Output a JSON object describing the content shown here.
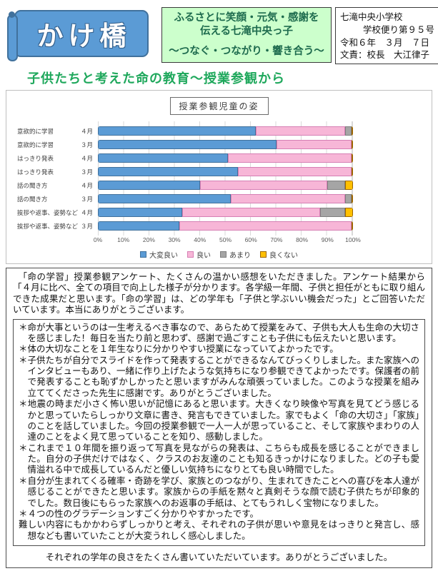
{
  "masthead": {
    "banner_title": "かけ橋",
    "motto": {
      "line1": "ふるさとに笑顔・元気・感謝を",
      "line2": "伝える七滝中央っ子",
      "tagline": "〜つなぐ・つながり・響き合う〜"
    },
    "school_info": {
      "school": "七滝中央小学校",
      "issue": "学校便り第９５号",
      "date": "令和６年　３月　７日",
      "author": "文責：校長　大江律子"
    }
  },
  "heading": "子供たちと考えた命の教育〜授業参観から",
  "chart_data": {
    "type": "bar",
    "orientation": "horizontal",
    "stacked": true,
    "title": "授業参観児童の姿",
    "xlim": [
      0,
      100
    ],
    "x_ticks": [
      "0%",
      "10%",
      "20%",
      "30%",
      "40%",
      "50%",
      "60%",
      "70%",
      "80%",
      "90%",
      "100%"
    ],
    "grid": true,
    "legend_position": "bottom",
    "categories": [
      {
        "name": "意欲的に学習",
        "month": "４月"
      },
      {
        "name": "意欲的に学習",
        "month": "３月"
      },
      {
        "name": "はっきり発表",
        "month": "４月"
      },
      {
        "name": "はっきり発表",
        "month": "３月"
      },
      {
        "name": "話の聞き方",
        "month": "４月"
      },
      {
        "name": "話の聞き方",
        "month": "３月"
      },
      {
        "name": "挨拶や返事、姿勢など",
        "month": "４月"
      },
      {
        "name": "挨拶や返事、姿勢など",
        "month": "３月"
      }
    ],
    "series": [
      {
        "name": "大変良い",
        "color": "#5b9bd5",
        "border": "#41719c",
        "values": [
          62,
          70,
          51,
          55,
          40,
          52,
          33,
          32
        ]
      },
      {
        "name": "良い",
        "color": "#f7b6d7",
        "border": "#d67fb4",
        "values": [
          35,
          29.5,
          48.5,
          44.5,
          50,
          45,
          54,
          67.5
        ]
      },
      {
        "name": "あまり",
        "color": "#a5a5a5",
        "border": "#7f7f7f",
        "values": [
          2.5,
          0,
          0,
          0,
          7,
          2.5,
          10,
          0
        ]
      },
      {
        "name": "良くない",
        "color": "#ffc000",
        "border": "#9c6500",
        "values": [
          0.5,
          0.5,
          0.5,
          0.5,
          3,
          0.5,
          3,
          0.5
        ]
      }
    ]
  },
  "report": {
    "intro": "「命の学習」授業参観アンケート、たくさんの温かい感想をいただきました。アンケート結果から「４月に比べ、全ての項目で向上した様子が分かります。各学級一年間、子供と担任がともに取り組んできた成果だと思います。「命の学習」は、どの学年も「子供と学ぶいい機会だった」とご回答いただいています。本当にありがとうございます。",
    "comments": [
      "＊命が大事というのは一生考えるべき事なので、あらためて授業をみて、子供も大人も生命の大切さを感じました！毎日を当たり前と思わず、感謝で過ごすことも子供にも伝えたいと思います。",
      "＊体の大切なことを１年生なりに分かりやすい授業になっていてよかったです。",
      "＊子供たちが自分でスライドを作って発表することができるなんてびっくりしました。また家族へのインタビューもあり、一緒に作り上げたような気持ちになり参観できてよかったです。保護者の前で発表することも恥ずかしかったと思いますがみんな頑張っていました。このような授業を組み立ててくださった先生に感謝です。ありがとうございました。",
      "＊地震の時まだ小さく怖い思いが記憶にあると思います。大きくなり映像や写真を見てどう感じるかと思っていたらしっかり文章に書き、発言もできていました。家でもよく「命の大切さ」「家族」のことを話していました。今回の授業参観で一人一人が思っていること、そして家族やまわりの人達のことをよく見て思っていることを知り、感動しました。",
      "＊これまで１０年間を振り返って写真を見ながらの発表は、こちらも成長を感じることができました。自分の子供だけではなく、クラスのお友達のことも知るきっかけになりました。どの子も愛情溢れる中で成長しているんだと優しい気持ちになりとても良い時間でした。",
      "＊自分が生まれてくる確率・奇跡を学び、家族とのつながり、生まれてきたことへの喜びを本人達が感じることができたと思います。家族からの手紙を黙々と真剣そうな顔で読む子供たちが印象的でした。数日後にもらった家族へのお返事の手紙は、とてもうれしく宝物になりました。",
      "＊４つの性のグラデーションすごく分かりやすかったです。",
      "難しい内容にもかかわらずしっかりと考え、それぞれの子供が思いや意見をはっきりと発言し、感想なども書いていたことが大変うれしく感心しました。"
    ],
    "closing": "それぞれの学年の良さをたくさん書いていただいています。ありがとうございました。"
  }
}
